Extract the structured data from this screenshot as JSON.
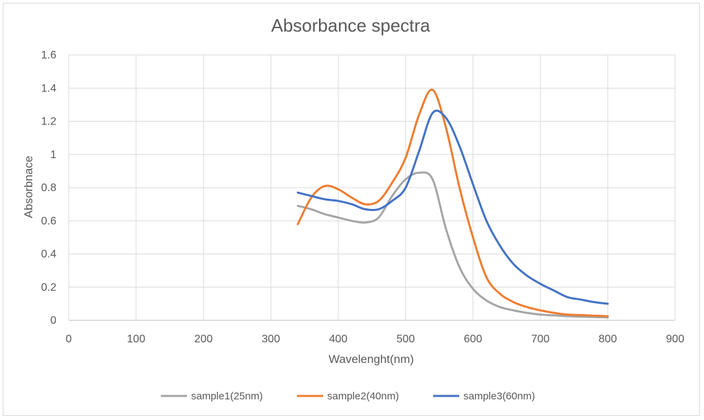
{
  "chart_data": {
    "type": "line",
    "title": "Absorbance spectra",
    "xlabel": "Wavelenght(nm)",
    "ylabel": "Absorbnace",
    "xlim": [
      0,
      900
    ],
    "ylim": [
      0,
      1.6
    ],
    "xticks": [
      0,
      100,
      200,
      300,
      400,
      500,
      600,
      700,
      800,
      900
    ],
    "yticks": [
      0,
      0.2,
      0.4,
      0.6,
      0.8,
      1,
      1.2,
      1.4,
      1.6
    ],
    "xtick_labels": [
      "0",
      "100",
      "200",
      "300",
      "400",
      "500",
      "600",
      "700",
      "800",
      "900"
    ],
    "ytick_labels": [
      "0",
      "0.2",
      "0.4",
      "0.6",
      "0.8",
      "1",
      "1.2",
      "1.4",
      "1.6"
    ],
    "grid": true,
    "legend_position": "bottom",
    "series": [
      {
        "name": "sample1(25nm)",
        "color": "#a5a5a5",
        "x": [
          340,
          360,
          380,
          400,
          420,
          440,
          460,
          480,
          500,
          520,
          540,
          560,
          580,
          600,
          620,
          640,
          660,
          680,
          700,
          720,
          740,
          760,
          780,
          800
        ],
        "y": [
          0.69,
          0.67,
          0.64,
          0.62,
          0.6,
          0.59,
          0.62,
          0.75,
          0.85,
          0.89,
          0.85,
          0.55,
          0.32,
          0.19,
          0.12,
          0.08,
          0.06,
          0.045,
          0.035,
          0.03,
          0.025,
          0.022,
          0.02,
          0.018
        ]
      },
      {
        "name": "sample2(40nm)",
        "color": "#ed7d31",
        "x": [
          340,
          360,
          380,
          400,
          420,
          440,
          460,
          480,
          500,
          520,
          540,
          560,
          580,
          600,
          620,
          640,
          660,
          680,
          700,
          720,
          740,
          760,
          780,
          800
        ],
        "y": [
          0.58,
          0.74,
          0.81,
          0.79,
          0.74,
          0.7,
          0.72,
          0.83,
          0.98,
          1.24,
          1.39,
          1.16,
          0.8,
          0.5,
          0.26,
          0.16,
          0.11,
          0.08,
          0.06,
          0.045,
          0.035,
          0.032,
          0.028,
          0.025
        ]
      },
      {
        "name": "sample3(60nm)",
        "color": "#4472c4",
        "x": [
          340,
          360,
          380,
          400,
          420,
          440,
          460,
          480,
          500,
          520,
          540,
          560,
          580,
          600,
          620,
          640,
          660,
          680,
          700,
          720,
          740,
          760,
          780,
          800
        ],
        "y": [
          0.77,
          0.75,
          0.73,
          0.72,
          0.7,
          0.67,
          0.67,
          0.72,
          0.8,
          1.02,
          1.25,
          1.22,
          1.05,
          0.82,
          0.6,
          0.45,
          0.34,
          0.27,
          0.22,
          0.18,
          0.14,
          0.125,
          0.11,
          0.1
        ]
      }
    ]
  }
}
